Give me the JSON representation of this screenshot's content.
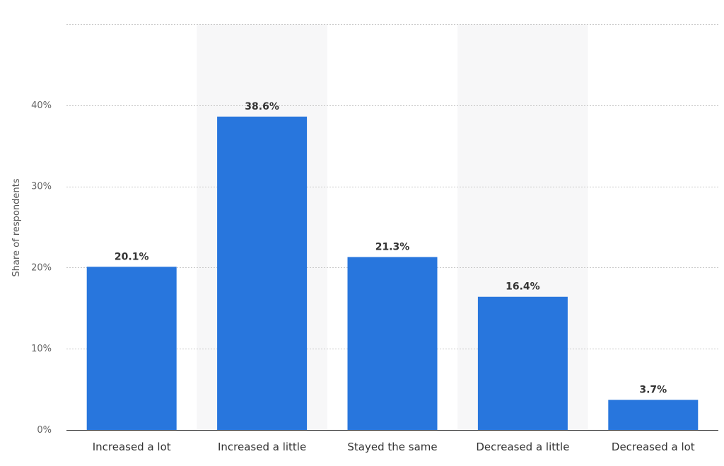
{
  "chart_data": {
    "type": "bar",
    "title": "",
    "xlabel": "",
    "ylabel": "Share of respondents",
    "categories": [
      "Increased a lot",
      "Increased a little",
      "Stayed the same",
      "Decreased a little",
      "Decreased a lot"
    ],
    "values": [
      20.1,
      38.6,
      21.3,
      16.4,
      3.7
    ],
    "data_labels": [
      "20.1%",
      "38.6%",
      "21.3%",
      "16.4%",
      "3.7%"
    ],
    "ylim": [
      0,
      50
    ],
    "yticks": [
      0,
      10,
      20,
      30,
      40
    ],
    "ytick_labels": [
      "0%",
      "10%",
      "20%",
      "30%",
      "40%"
    ],
    "grid": true,
    "bar_color": "#2876dd",
    "band_color": "#f7f7f8"
  }
}
